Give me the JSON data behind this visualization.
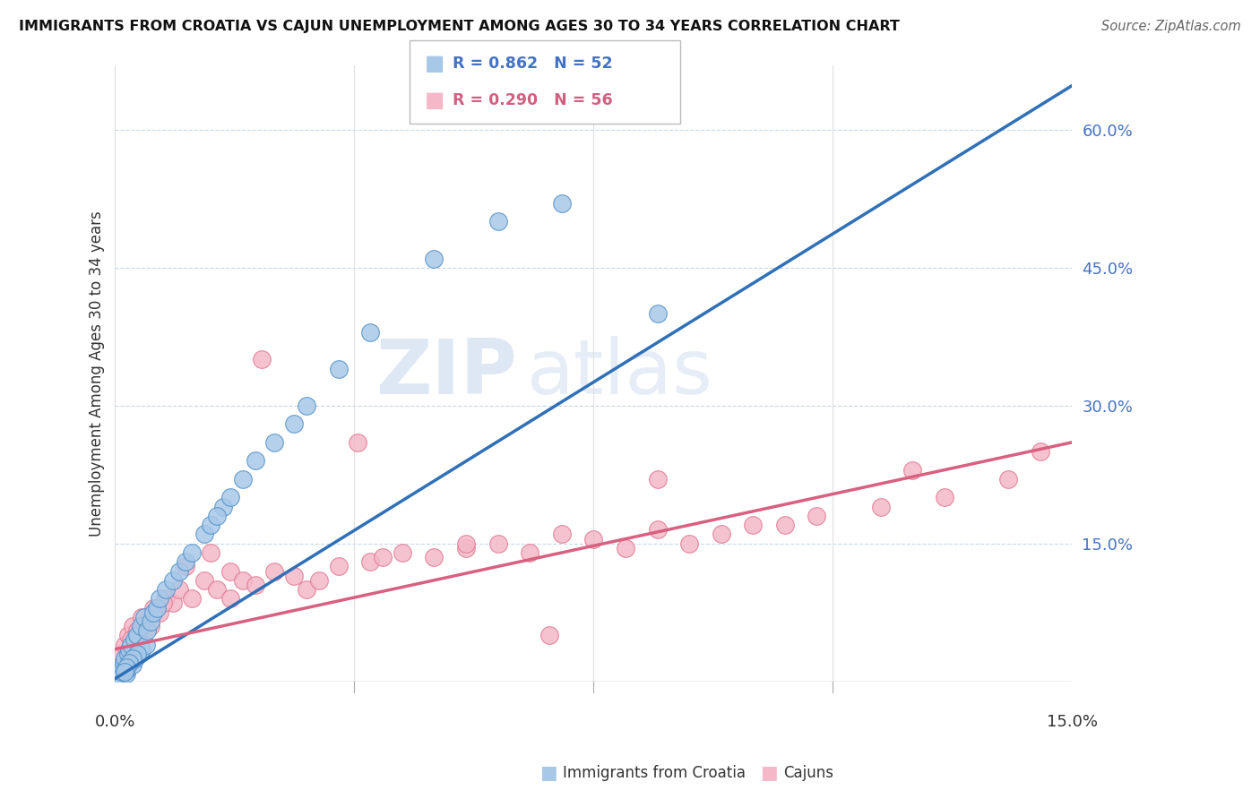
{
  "title": "IMMIGRANTS FROM CROATIA VS CAJUN UNEMPLOYMENT AMONG AGES 30 TO 34 YEARS CORRELATION CHART",
  "source": "Source: ZipAtlas.com",
  "ylabel": "Unemployment Among Ages 30 to 34 years",
  "xmin": 0.0,
  "xmax": 15.0,
  "ymin": 0.0,
  "ymax": 67.0,
  "legend_blue_r": "R = 0.862",
  "legend_blue_n": "N = 52",
  "legend_pink_r": "R = 0.290",
  "legend_pink_n": "N = 56",
  "legend_label_blue": "Immigrants from Croatia",
  "legend_label_pink": "Cajuns",
  "blue_color": "#a8c8e8",
  "pink_color": "#f4b8c8",
  "blue_edge_color": "#5090c8",
  "pink_edge_color": "#e07890",
  "blue_line_color": "#3070b8",
  "pink_line_color": "#d86080",
  "blue_slope": 4.3,
  "blue_intercept": 0.3,
  "pink_slope": 1.5,
  "pink_intercept": 3.5,
  "watermark_zip": "ZIP",
  "watermark_atlas": "atlas",
  "right_ytick_labels": [
    "",
    "15.0%",
    "30.0%",
    "45.0%",
    "60.0%"
  ],
  "right_ytick_values": [
    0,
    15,
    30,
    45,
    60
  ],
  "blue_scatter_x": [
    0.05,
    0.08,
    0.1,
    0.12,
    0.13,
    0.15,
    0.17,
    0.18,
    0.2,
    0.22,
    0.23,
    0.25,
    0.27,
    0.3,
    0.32,
    0.35,
    0.38,
    0.4,
    0.42,
    0.45,
    0.48,
    0.5,
    0.55,
    0.6,
    0.65,
    0.7,
    0.8,
    0.9,
    1.0,
    1.1,
    1.2,
    1.4,
    1.5,
    1.7,
    1.8,
    2.0,
    2.2,
    2.5,
    2.8,
    3.0,
    3.5,
    4.0,
    5.0,
    6.0,
    7.0,
    8.5,
    1.6,
    0.35,
    0.28,
    0.22,
    0.18,
    0.15
  ],
  "blue_scatter_y": [
    0.2,
    0.5,
    1.0,
    1.5,
    2.0,
    2.5,
    0.8,
    1.2,
    3.0,
    3.5,
    2.0,
    4.0,
    1.8,
    4.5,
    2.5,
    5.0,
    3.0,
    6.0,
    3.5,
    7.0,
    4.0,
    5.5,
    6.5,
    7.5,
    8.0,
    9.0,
    10.0,
    11.0,
    12.0,
    13.0,
    14.0,
    16.0,
    17.0,
    19.0,
    20.0,
    22.0,
    24.0,
    26.0,
    28.0,
    30.0,
    34.0,
    38.0,
    46.0,
    50.0,
    52.0,
    40.0,
    18.0,
    3.0,
    2.5,
    2.0,
    1.5,
    1.0
  ],
  "pink_scatter_x": [
    0.1,
    0.15,
    0.2,
    0.28,
    0.35,
    0.42,
    0.5,
    0.6,
    0.7,
    0.8,
    0.9,
    1.0,
    1.2,
    1.4,
    1.6,
    1.8,
    2.0,
    2.2,
    2.5,
    2.8,
    3.0,
    3.5,
    4.0,
    4.5,
    5.0,
    5.5,
    6.0,
    6.5,
    7.0,
    7.5,
    8.0,
    8.5,
    9.0,
    9.5,
    10.0,
    11.0,
    12.0,
    13.0,
    14.0,
    14.5,
    0.3,
    0.55,
    0.75,
    1.1,
    1.5,
    2.3,
    3.2,
    4.2,
    5.5,
    6.8,
    8.5,
    10.5,
    12.5,
    0.25,
    1.8,
    3.8
  ],
  "pink_scatter_y": [
    3.0,
    4.0,
    5.0,
    6.0,
    5.5,
    7.0,
    6.5,
    8.0,
    7.5,
    9.0,
    8.5,
    10.0,
    9.0,
    11.0,
    10.0,
    12.0,
    11.0,
    10.5,
    12.0,
    11.5,
    10.0,
    12.5,
    13.0,
    14.0,
    13.5,
    14.5,
    15.0,
    14.0,
    16.0,
    15.5,
    14.5,
    16.5,
    15.0,
    16.0,
    17.0,
    18.0,
    19.0,
    20.0,
    22.0,
    25.0,
    3.5,
    6.0,
    8.5,
    12.5,
    14.0,
    35.0,
    11.0,
    13.5,
    15.0,
    5.0,
    22.0,
    17.0,
    23.0,
    4.5,
    9.0,
    26.0
  ]
}
